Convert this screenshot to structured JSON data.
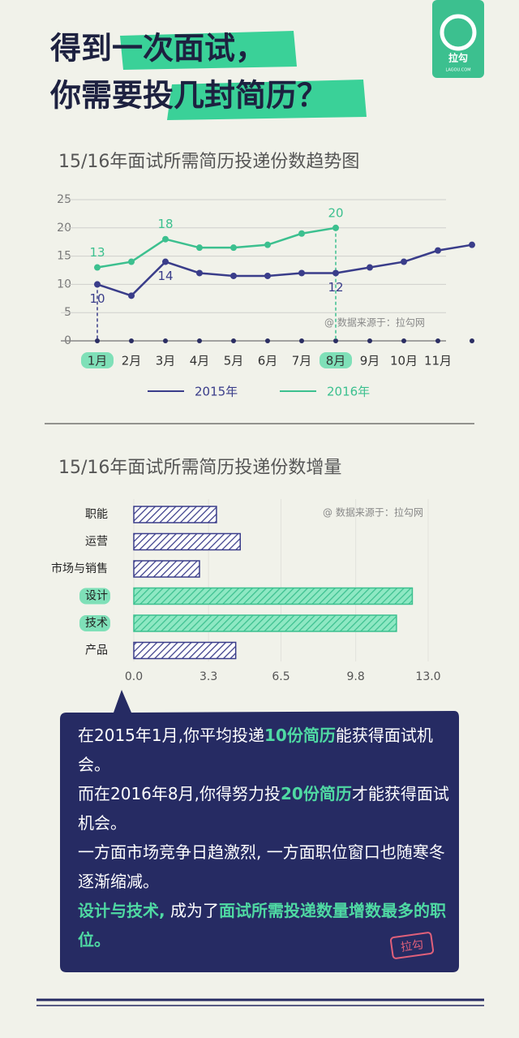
{
  "header": {
    "title_lines": [
      "得到一次面试，",
      "你需要投几封简历？"
    ],
    "logo": {
      "name": "拉勾",
      "site": "LAGOU.COM"
    }
  },
  "chart_data": [
    {
      "type": "line",
      "title": "15/16年面试所需简历投递份数趋势图",
      "categories": [
        "1月",
        "2月",
        "3月",
        "4月",
        "5月",
        "6月",
        "7月",
        "8月",
        "9月",
        "10月",
        "11月",
        null
      ],
      "series": [
        {
          "name": "2015年",
          "color": "#3a3d8a",
          "values": [
            10,
            8,
            14,
            12,
            11.5,
            11.5,
            12,
            12,
            13,
            14,
            16,
            17
          ],
          "value_labels": [
            "10",
            null,
            "14",
            null,
            null,
            null,
            null,
            "12",
            null,
            null,
            null,
            null
          ]
        },
        {
          "name": "2016年",
          "color": "#3cc08f",
          "values": [
            13,
            14,
            18,
            16.5,
            16.5,
            17,
            19,
            20,
            null,
            null,
            null,
            null
          ],
          "value_labels": [
            "13",
            null,
            "18",
            null,
            null,
            null,
            null,
            "20",
            null,
            null,
            null,
            null
          ]
        }
      ],
      "highlight": [
        {
          "series": 0,
          "index": 0
        },
        {
          "series": 1,
          "index": 7
        }
      ],
      "ylim": [
        0,
        25
      ],
      "yticks": [
        0,
        5,
        10,
        15,
        20,
        25
      ],
      "grid": true,
      "legend": "bottom",
      "annotation": "@ 数据来源于：拉勾网"
    },
    {
      "type": "hbar",
      "title": "15/16年面试所需简历投递份数增量",
      "categories": [
        "职能",
        "运营",
        "市场与销售",
        "设计",
        "技术",
        "产品"
      ],
      "values": [
        3.65,
        4.7,
        2.9,
        12.3,
        11.6,
        4.5
      ],
      "colors": [
        "#3a3d8a",
        "#3a3d8a",
        "#3a3d8a",
        "#3cc08f",
        "#3cc08f",
        "#3a3d8a"
      ],
      "xlim": [
        0,
        13
      ],
      "xticks": [
        {
          "value": 0,
          "label": "0.0"
        },
        3.3,
        6.5,
        9.8,
        {
          "value": 13,
          "label": "13.0"
        }
      ],
      "annotation": "@ 数据来源于：拉勾网"
    }
  ],
  "note": {
    "paragraphs": [
      [
        {
          "text": "在2015年1月,你平均投递"
        },
        {
          "text": "10份简历",
          "emphasis": true
        },
        {
          "text": "能获得面试机会。"
        }
      ],
      [
        {
          "text": "而在2016年8月,你得努力投"
        },
        {
          "text": "20份简历",
          "emphasis": true
        },
        {
          "text": "才能获得面试机会。"
        }
      ],
      [
        {
          "text": "一方面市场竞争日趋激烈, 一方面职位窗口也随寒冬逐渐缩减。"
        }
      ],
      [
        {
          "text": "设计与技术,",
          "emphasis": true
        },
        {
          "text": " 成为了"
        },
        {
          "text": "面试所需投递数量增数最多的职位。",
          "emphasis": true
        }
      ]
    ],
    "stamp": "拉勾"
  }
}
